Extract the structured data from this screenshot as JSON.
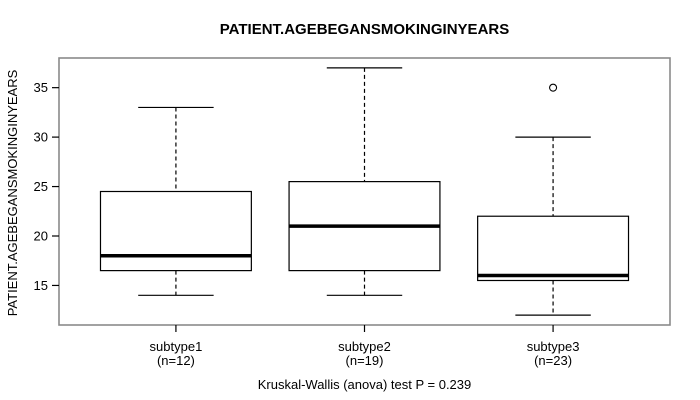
{
  "chart_data": {
    "type": "boxplot",
    "title": "PATIENT.AGEBEGANSMOKINGINYEARS",
    "ylabel": "PATIENT.AGEBEGANSMOKINGINYEARS",
    "footer": "Kruskal-Wallis (anova) test P = 0.239",
    "p_value": 0.239,
    "ylim": [
      11,
      38
    ],
    "yticks": [
      15,
      20,
      25,
      30,
      35
    ],
    "grid": false,
    "legend": "none",
    "frame_color": "#8a8a8a",
    "box_stroke_color": "#000000",
    "box_fill_color": "#ffffff",
    "categories": [
      "subtype1",
      "subtype2",
      "subtype3"
    ],
    "sublabels": [
      "(n=12)",
      "(n=19)",
      "(n=23)"
    ],
    "groups": [
      {
        "label": "subtype1",
        "n": 12,
        "whisker_low": 14,
        "q1": 16.5,
        "median": 18,
        "q3": 24.5,
        "whisker_high": 33,
        "outliers": []
      },
      {
        "label": "subtype2",
        "n": 19,
        "whisker_low": 14,
        "q1": 16.5,
        "median": 21,
        "q3": 25.5,
        "whisker_high": 37,
        "outliers": []
      },
      {
        "label": "subtype3",
        "n": 23,
        "whisker_low": 12,
        "q1": 15.5,
        "median": 16,
        "q3": 22,
        "whisker_high": 30,
        "outliers": [
          35
        ]
      }
    ]
  }
}
